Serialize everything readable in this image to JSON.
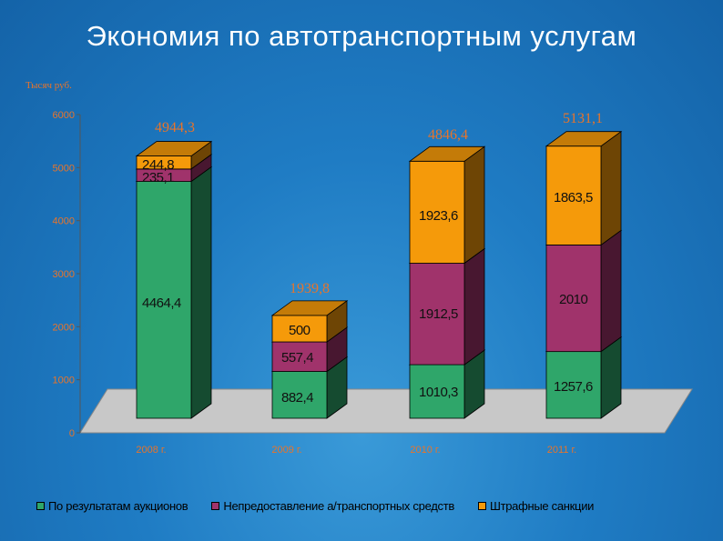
{
  "title": "Экономия по автотранспортным услугам",
  "unit_label": "Тысяч  руб.",
  "chart_data": {
    "type": "bar",
    "stacked": true,
    "categories": [
      "2008 г.",
      "2009 г.",
      "2010 г.",
      "2011 г."
    ],
    "ylim": [
      0,
      6000
    ],
    "yticks": [
      0,
      1000,
      2000,
      3000,
      4000,
      5000,
      6000
    ],
    "series": [
      {
        "name": "По результатам аукционов",
        "color": "#2fa66a",
        "values": [
          4464.4,
          882.4,
          1010.3,
          1257.6
        ],
        "labels": [
          "4464,4",
          "882,4",
          "1010,3",
          "1257,6"
        ]
      },
      {
        "name": "Непредоставление а/транспортных средств",
        "color": "#a0336b",
        "values": [
          235.1,
          557.4,
          1912.5,
          2010
        ],
        "labels": [
          "235,1",
          "557,4",
          "1912,5",
          "2010"
        ]
      },
      {
        "name": "Штрафные санкции",
        "color": "#f59a0a",
        "values": [
          244.8,
          500,
          1923.6,
          1863.5
        ],
        "labels": [
          "244,8",
          "500",
          "1923,6",
          "1863,5"
        ]
      }
    ],
    "totals": [
      4944.3,
      1939.8,
      4846.4,
      5131.1
    ],
    "total_labels": [
      "4944,3",
      "1939,8",
      "4846,4",
      "5131,1"
    ],
    "legend_position": "bottom"
  }
}
